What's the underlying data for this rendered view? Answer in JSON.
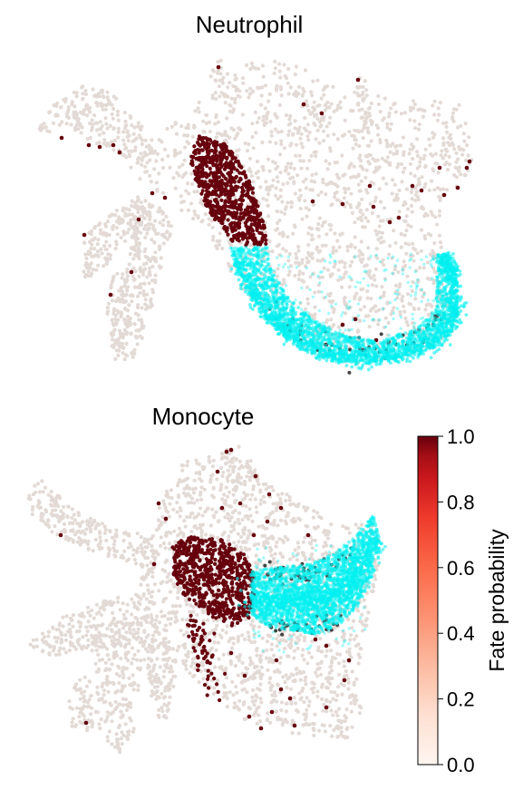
{
  "chart_data": [
    {
      "type": "scatter",
      "title": "Neutrophil",
      "xlabel": "",
      "ylabel": "",
      "grid": false,
      "axes_visible": false,
      "background_points_color": "#e3dad6",
      "highlight_color": "#00f0f0",
      "high_fate_color": "#67000d",
      "note_regions": {
        "high_fate_cluster": "dense dark-red cluster at upper-center",
        "highlighted_cells": "cyan arc along the lower right boundary"
      }
    },
    {
      "type": "scatter",
      "title": "Monocyte",
      "xlabel": "",
      "ylabel": "",
      "grid": false,
      "axes_visible": false,
      "background_points_color": "#e3dad6",
      "highlight_color": "#00f0f0",
      "high_fate_color": "#67000d",
      "note_regions": {
        "high_fate_cluster": "dark-red cluster at center-left",
        "highlighted_cells": "cyan band at center-right"
      }
    }
  ],
  "colorbar": {
    "label": "Fate probability",
    "colormap": "Reds",
    "vmin": 0.0,
    "vmax": 1.0,
    "ticks": [
      "0.0",
      "0.2",
      "0.4",
      "0.6",
      "0.8",
      "1.0"
    ],
    "color_low": "#fff5f0",
    "color_high": "#67000d"
  }
}
